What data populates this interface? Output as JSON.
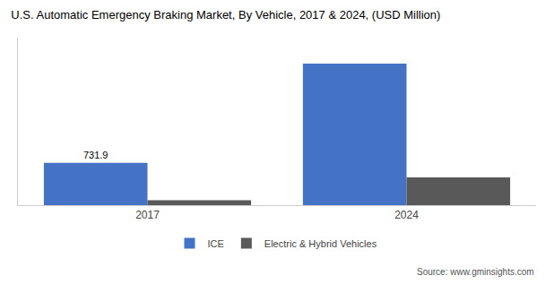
{
  "chart_data": {
    "type": "bar",
    "title": "U.S. Automatic Emergency Braking Market, By Vehicle, 2017 & 2024, (USD Million)",
    "categories": [
      "2017",
      "2024"
    ],
    "series": [
      {
        "name": "ICE",
        "color": "#4472C4",
        "values": [
          731.9,
          2450.0
        ],
        "value_labels": [
          "731.9",
          null
        ]
      },
      {
        "name": "Electric & Hybrid Vehicles",
        "color": "#595959",
        "values": [
          85.0,
          480.0
        ]
      }
    ],
    "ylim": [
      0,
      2900
    ],
    "tick_labels": "x",
    "grid": false,
    "legend": "bottom",
    "annotations": [
      {
        "text": "Source: www.gminsights.com"
      }
    ]
  }
}
